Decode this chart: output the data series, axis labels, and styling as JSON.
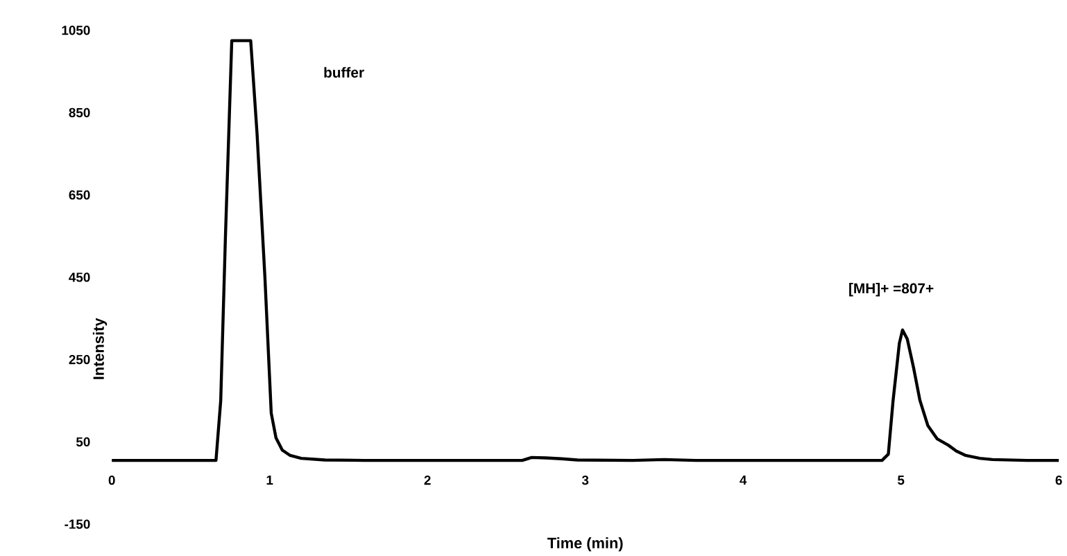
{
  "chart_data": {
    "type": "line",
    "xlabel": "Time (min)",
    "ylabel": "Intensity",
    "xlim": [
      0,
      6
    ],
    "xticks": [
      0,
      1,
      2,
      3,
      4,
      5,
      6
    ],
    "ylim": [
      -150,
      1050
    ],
    "yticks": [
      -150,
      50,
      250,
      450,
      650,
      850,
      1050
    ],
    "color": "#000000",
    "line_style": "solid",
    "x": [
      0,
      0.66,
      0.69,
      0.72,
      0.76,
      0.88,
      0.92,
      0.97,
      1.01,
      1.04,
      1.08,
      1.13,
      1.2,
      1.35,
      1.6,
      2.0,
      2.6,
      2.66,
      2.75,
      2.85,
      2.95,
      3.3,
      3.5,
      3.7,
      4.0,
      4.5,
      4.88,
      4.92,
      4.95,
      4.99,
      5.01,
      5.04,
      5.08,
      5.12,
      5.17,
      5.23,
      5.3,
      5.35,
      5.41,
      5.5,
      5.58,
      5.8,
      6.0
    ],
    "values": [
      5,
      5,
      150,
      550,
      1025,
      1025,
      800,
      450,
      120,
      60,
      30,
      17,
      10,
      6,
      5,
      5,
      5,
      12,
      11,
      9,
      6,
      5,
      7,
      5,
      5,
      5,
      5,
      20,
      150,
      290,
      322,
      300,
      230,
      151,
      90,
      57,
      42,
      28,
      17,
      10,
      7,
      5,
      5
    ],
    "annotations": [
      "buffer",
      "[MH]+ =807+"
    ]
  }
}
